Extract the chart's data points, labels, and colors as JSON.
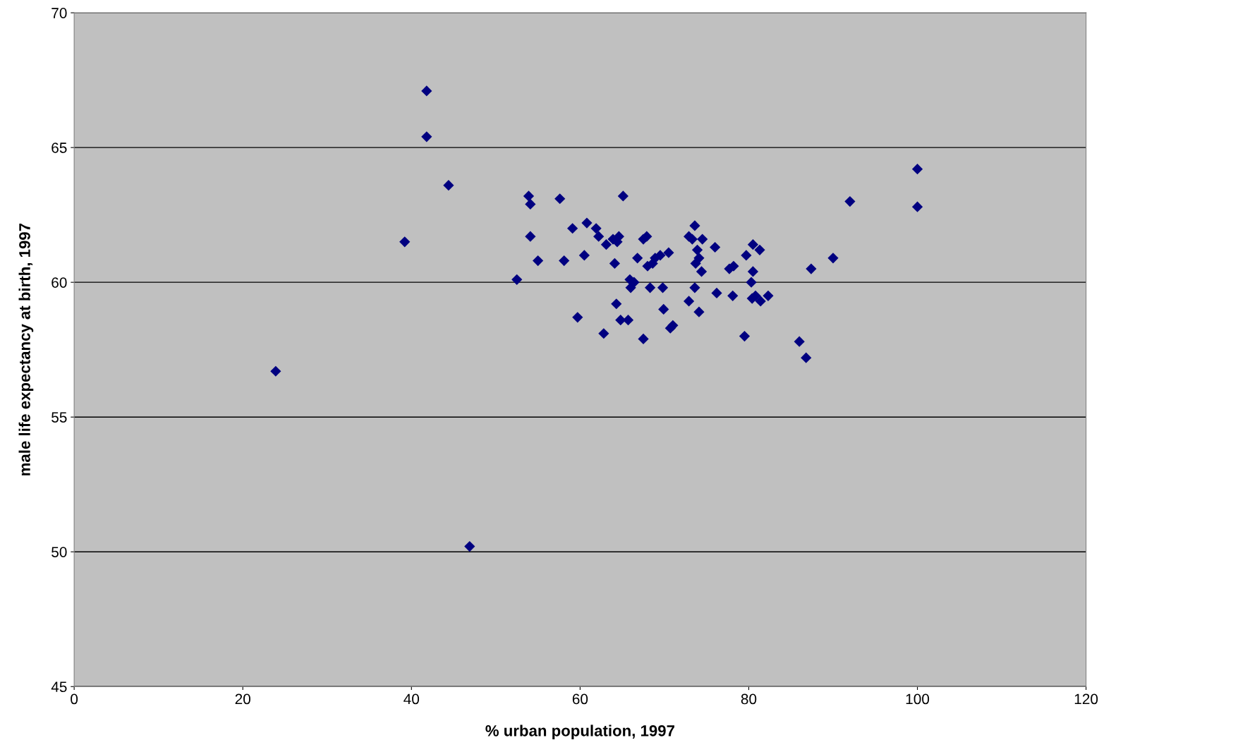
{
  "chart_data": {
    "type": "scatter",
    "xlabel": "% urban population, 1997",
    "ylabel": "male life expectancy at birth, 1997",
    "x": [
      23.9,
      39.2,
      41.8,
      41.8,
      44.4,
      46.9,
      52.5,
      53.9,
      54.1,
      54.1,
      55.0,
      57.6,
      58.1,
      59.1,
      59.7,
      60.5,
      60.8,
      61.9,
      62.2,
      62.8,
      63.1,
      63.9,
      64.1,
      64.3,
      64.4,
      64.6,
      64.8,
      65.1,
      65.7,
      65.9,
      66.0,
      66.4,
      66.8,
      67.5,
      67.5,
      67.9,
      68.0,
      68.3,
      68.6,
      68.9,
      69.5,
      69.8,
      69.9,
      70.5,
      70.7,
      71.0,
      72.9,
      72.9,
      73.3,
      73.6,
      73.6,
      73.7,
      73.9,
      74.1,
      74.1,
      74.4,
      74.5,
      76.0,
      76.2,
      77.7,
      78.2,
      78.1,
      79.5,
      79.7,
      80.3,
      80.5,
      80.5,
      80.4,
      80.8,
      81.3,
      81.4,
      82.3,
      86.0,
      86.8,
      87.4,
      90.0,
      92.0,
      100.0,
      100.0
    ],
    "values": [
      56.7,
      61.5,
      67.1,
      65.4,
      63.6,
      50.2,
      60.1,
      63.2,
      62.9,
      61.7,
      60.8,
      63.1,
      60.8,
      62.0,
      58.7,
      61.0,
      62.2,
      62.0,
      61.7,
      58.1,
      61.4,
      61.6,
      60.7,
      59.2,
      61.5,
      61.7,
      58.6,
      63.2,
      58.6,
      60.1,
      59.8,
      60.0,
      60.9,
      57.9,
      61.6,
      61.7,
      60.6,
      59.8,
      60.7,
      60.9,
      61.0,
      59.8,
      59.0,
      61.1,
      58.3,
      58.4,
      59.3,
      61.7,
      61.6,
      62.1,
      59.8,
      60.7,
      61.2,
      60.9,
      58.9,
      60.4,
      61.6,
      61.3,
      59.6,
      60.5,
      60.6,
      59.5,
      58.0,
      61.0,
      60.0,
      60.4,
      61.4,
      59.4,
      59.5,
      61.2,
      59.3,
      59.5,
      57.8,
      57.2,
      60.5,
      60.9,
      63.0,
      64.2,
      62.8
    ],
    "color": "#000080",
    "marker": "diamond",
    "xlim": [
      0,
      120
    ],
    "xticks": [
      0,
      20,
      40,
      60,
      80,
      100,
      120
    ],
    "ylim": [
      45,
      70
    ],
    "yticks": [
      45,
      50,
      55,
      60,
      65,
      70
    ],
    "grid": "y",
    "legend": false
  }
}
